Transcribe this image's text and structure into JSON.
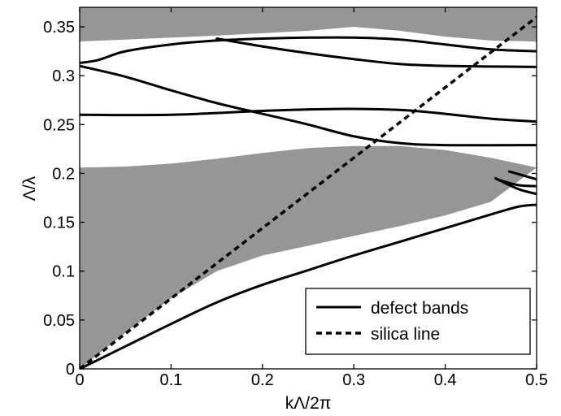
{
  "chart_data": {
    "type": "line",
    "xlabel": "kΛ/2π",
    "ylabel": "Λ/λ",
    "xlim": [
      0,
      0.5
    ],
    "ylim": [
      0,
      0.37
    ],
    "xticks": [
      0,
      0.1,
      0.2,
      0.3,
      0.4,
      0.5
    ],
    "xtick_labels": [
      "0",
      "0.1",
      "0.2",
      "0.3",
      "0.4",
      "0.5"
    ],
    "yticks": [
      0,
      0.05,
      0.1,
      0.15,
      0.2,
      0.25,
      0.3,
      0.35
    ],
    "ytick_labels": [
      "0",
      "0.05",
      "0.1",
      "0.15",
      "0.2",
      "0.25",
      "0.3",
      "0.35"
    ],
    "grid": false,
    "legend_position": "bottom-right",
    "legend": [
      {
        "label": "defect bands",
        "style": "solid"
      },
      {
        "label": "silica line",
        "style": "dashed"
      }
    ],
    "shaded_regions": [
      {
        "color": "#969696",
        "upper": [
          [
            0,
            0.37
          ],
          [
            0.5,
            0.37
          ]
        ],
        "lower": [
          [
            0,
            0.335
          ],
          [
            0.15,
            0.341
          ],
          [
            0.25,
            0.346
          ],
          [
            0.3,
            0.35
          ],
          [
            0.35,
            0.346
          ],
          [
            0.4,
            0.34
          ],
          [
            0.45,
            0.336
          ],
          [
            0.5,
            0.335
          ]
        ]
      },
      {
        "color": "#969696",
        "upper": [
          [
            0,
            0.206
          ],
          [
            0.05,
            0.207
          ],
          [
            0.1,
            0.21
          ],
          [
            0.15,
            0.215
          ],
          [
            0.2,
            0.221
          ],
          [
            0.25,
            0.226
          ],
          [
            0.3,
            0.228
          ],
          [
            0.35,
            0.228
          ],
          [
            0.4,
            0.224
          ],
          [
            0.45,
            0.216
          ],
          [
            0.5,
            0.206
          ]
        ],
        "lower": [
          [
            0,
            0.0
          ],
          [
            0.05,
            0.037
          ],
          [
            0.1,
            0.072
          ],
          [
            0.15,
            0.1
          ],
          [
            0.2,
            0.116
          ],
          [
            0.25,
            0.126
          ],
          [
            0.3,
            0.136
          ],
          [
            0.35,
            0.146
          ],
          [
            0.4,
            0.157
          ],
          [
            0.45,
            0.171
          ],
          [
            0.5,
            0.206
          ]
        ]
      }
    ],
    "series": [
      {
        "style": "solid",
        "points": [
          [
            0,
            0.0
          ],
          [
            0.05,
            0.023
          ],
          [
            0.1,
            0.046
          ],
          [
            0.15,
            0.068
          ],
          [
            0.2,
            0.086
          ],
          [
            0.25,
            0.101
          ],
          [
            0.3,
            0.116
          ],
          [
            0.35,
            0.13
          ],
          [
            0.4,
            0.144
          ],
          [
            0.45,
            0.158
          ],
          [
            0.48,
            0.166
          ],
          [
            0.5,
            0.168
          ]
        ]
      },
      {
        "style": "solid",
        "points": [
          [
            0.46,
            0.193
          ],
          [
            0.48,
            0.188
          ],
          [
            0.5,
            0.187
          ]
        ]
      },
      {
        "style": "solid",
        "points": [
          [
            0.455,
            0.195
          ],
          [
            0.48,
            0.184
          ],
          [
            0.5,
            0.179
          ]
        ]
      },
      {
        "style": "solid",
        "points": [
          [
            0.47,
            0.202
          ],
          [
            0.5,
            0.194
          ]
        ]
      },
      {
        "style": "solid",
        "points": [
          [
            0,
            0.26
          ],
          [
            0.1,
            0.26
          ],
          [
            0.2,
            0.264
          ],
          [
            0.28,
            0.266
          ],
          [
            0.35,
            0.265
          ],
          [
            0.4,
            0.261
          ],
          [
            0.45,
            0.256
          ],
          [
            0.5,
            0.253
          ]
        ]
      },
      {
        "style": "solid",
        "points": [
          [
            0,
            0.31
          ],
          [
            0.05,
            0.299
          ],
          [
            0.1,
            0.285
          ],
          [
            0.15,
            0.272
          ],
          [
            0.2,
            0.261
          ],
          [
            0.25,
            0.25
          ],
          [
            0.3,
            0.238
          ],
          [
            0.35,
            0.231
          ],
          [
            0.4,
            0.229
          ],
          [
            0.5,
            0.229
          ]
        ]
      },
      {
        "style": "solid",
        "points": [
          [
            0,
            0.313
          ],
          [
            0.02,
            0.316
          ],
          [
            0.05,
            0.325
          ],
          [
            0.1,
            0.332
          ],
          [
            0.15,
            0.336
          ],
          [
            0.2,
            0.338
          ],
          [
            0.25,
            0.339
          ],
          [
            0.3,
            0.339
          ],
          [
            0.35,
            0.337
          ],
          [
            0.4,
            0.332
          ],
          [
            0.45,
            0.327
          ],
          [
            0.5,
            0.325
          ]
        ]
      },
      {
        "style": "solid",
        "points": [
          [
            0.15,
            0.338
          ],
          [
            0.2,
            0.33
          ],
          [
            0.25,
            0.323
          ],
          [
            0.3,
            0.317
          ],
          [
            0.35,
            0.312
          ],
          [
            0.4,
            0.31
          ],
          [
            0.5,
            0.309
          ]
        ]
      }
    ],
    "silica_line": {
      "style": "dashed",
      "points": [
        [
          0,
          0.0
        ],
        [
          0.5,
          0.36
        ]
      ]
    }
  }
}
